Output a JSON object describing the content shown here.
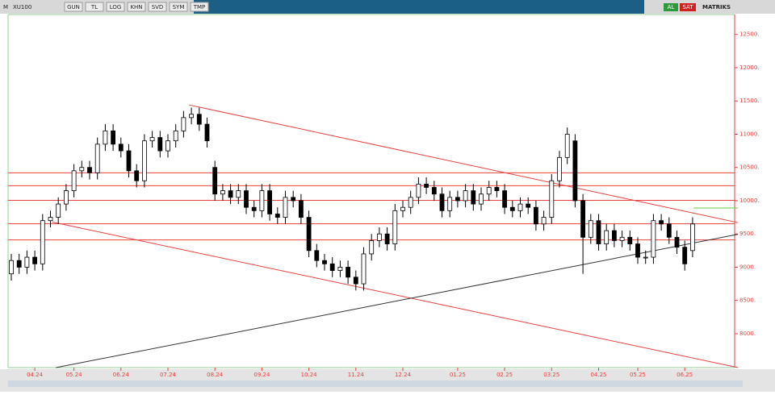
{
  "toolbar": {
    "symbol_prefix": "M",
    "symbol": "XU100",
    "buttons": [
      "GUN",
      "TL",
      "LOG",
      "KHN",
      "SVD",
      "SYM",
      "TMP"
    ],
    "buy": "AL",
    "sell": "SAT",
    "brand": "MATRIKS"
  },
  "chart_data": {
    "type": "candlestick",
    "categories": [
      null,
      null,
      null,
      "04.24",
      null,
      null,
      null,
      null,
      "05.24",
      null,
      null,
      null,
      null,
      null,
      "06.24",
      null,
      null,
      null,
      null,
      null,
      "07.24",
      null,
      null,
      null,
      null,
      null,
      "08.24",
      null,
      null,
      null,
      null,
      null,
      "09.24",
      null,
      null,
      null,
      null,
      null,
      "10.24",
      null,
      null,
      null,
      null,
      null,
      "11.24",
      null,
      null,
      null,
      null,
      null,
      "12.24",
      null,
      null,
      null,
      null,
      null,
      null,
      "01.25",
      null,
      null,
      null,
      null,
      null,
      "02.25",
      null,
      null,
      null,
      null,
      null,
      "03.25",
      null,
      null,
      null,
      null,
      null,
      "04.25",
      null,
      null,
      null,
      null,
      "05.25",
      null,
      null,
      null,
      null,
      null,
      "06.25",
      null
    ],
    "open": [
      8900,
      9100,
      9000,
      9150,
      9050,
      9700,
      9750,
      9950,
      10150,
      10450,
      10500,
      10420,
      10850,
      11050,
      10850,
      10750,
      10450,
      10300,
      10900,
      10950,
      10750,
      10900,
      11050,
      11250,
      11300,
      11150,
      10500,
      10100,
      10150,
      10050,
      10150,
      9900,
      9850,
      10150,
      9800,
      9750,
      10050,
      10000,
      9750,
      9250,
      9100,
      9050,
      8950,
      9000,
      8850,
      8750,
      9200,
      9400,
      9500,
      9350,
      9850,
      9900,
      10050,
      10250,
      10200,
      10100,
      9850,
      10050,
      10000,
      10150,
      9950,
      10100,
      10200,
      10150,
      9900,
      9850,
      9950,
      9900,
      9650,
      9750,
      10300,
      10650,
      10900,
      10000,
      9450,
      9700,
      9350,
      9550,
      9400,
      9450,
      9350,
      9150,
      9150,
      9700,
      9650,
      9450,
      9300,
      9250
    ],
    "high": [
      9200,
      9200,
      9250,
      9250,
      9800,
      9850,
      10050,
      10250,
      10550,
      10600,
      10600,
      10950,
      11150,
      11150,
      10950,
      10850,
      10550,
      11000,
      11050,
      11050,
      11000,
      11150,
      11350,
      11400,
      11400,
      11250,
      10600,
      10250,
      10250,
      10250,
      10250,
      10000,
      10250,
      10250,
      9900,
      10150,
      10150,
      10100,
      9850,
      9350,
      9200,
      9150,
      9100,
      9100,
      8950,
      9300,
      9500,
      9600,
      9600,
      9950,
      10000,
      10150,
      10350,
      10350,
      10300,
      10200,
      10150,
      10150,
      10250,
      10250,
      10200,
      10300,
      10300,
      10250,
      10000,
      10050,
      10050,
      10000,
      9850,
      10400,
      10750,
      11100,
      11000,
      10100,
      9800,
      9800,
      9650,
      9650,
      9550,
      9550,
      9450,
      9250,
      9800,
      9800,
      9750,
      9550,
      9400,
      9750
    ],
    "low": [
      8800,
      8900,
      8900,
      8950,
      8950,
      9600,
      9650,
      9850,
      10050,
      10350,
      10320,
      10320,
      10750,
      10750,
      10650,
      10350,
      10200,
      10200,
      10800,
      10650,
      10650,
      10800,
      10950,
      11150,
      11050,
      10800,
      10000,
      10000,
      9950,
      9950,
      9800,
      9750,
      9750,
      9700,
      9650,
      9650,
      9900,
      9650,
      9150,
      9000,
      8950,
      8850,
      8850,
      8750,
      8650,
      8650,
      9100,
      9300,
      9250,
      9250,
      9750,
      9800,
      9950,
      10100,
      10000,
      9750,
      9750,
      9900,
      9900,
      9850,
      9850,
      10000,
      10050,
      9800,
      9750,
      9750,
      9800,
      9550,
      9550,
      9650,
      10200,
      10550,
      9900,
      8900,
      9350,
      9250,
      9250,
      9300,
      9300,
      9250,
      9050,
      9050,
      9050,
      9550,
      9350,
      9200,
      8950,
      9150
    ],
    "close": [
      9100,
      9000,
      9150,
      9050,
      9700,
      9750,
      9950,
      10150,
      10450,
      10500,
      10420,
      10850,
      11050,
      10850,
      10750,
      10450,
      10300,
      10900,
      10950,
      10750,
      10900,
      11050,
      11250,
      11300,
      11150,
      10900,
      10100,
      10150,
      10050,
      10150,
      9900,
      9850,
      10150,
      9800,
      9750,
      10050,
      10000,
      9750,
      9250,
      9100,
      9050,
      8950,
      9000,
      8850,
      8750,
      9200,
      9400,
      9500,
      9350,
      9850,
      9900,
      10050,
      10250,
      10200,
      10100,
      9850,
      10050,
      10000,
      10150,
      9950,
      10100,
      10200,
      10150,
      9900,
      9850,
      9950,
      9900,
      9650,
      9750,
      10300,
      10650,
      11000,
      10000,
      9450,
      9700,
      9350,
      9550,
      9400,
      9450,
      9350,
      9150,
      9150,
      9700,
      9650,
      9450,
      9300,
      9050,
      9650
    ],
    "ylim": [
      7490,
      12800
    ],
    "yticks": [
      {
        "value": 8000,
        "label": "8000."
      },
      {
        "value": 8500,
        "label": "8500."
      },
      {
        "value": 9000,
        "label": "9000."
      },
      {
        "value": 9500,
        "label": "9500."
      },
      {
        "value": 10000,
        "label": "10000."
      },
      {
        "value": 10500,
        "label": "10500."
      },
      {
        "value": 11000,
        "label": "11000."
      },
      {
        "value": 11500,
        "label": "11500."
      },
      {
        "value": 12000,
        "label": "12000."
      },
      {
        "value": 12500,
        "label": "12500."
      }
    ],
    "hlines": [
      {
        "value": 10420,
        "color": "#e84040"
      },
      {
        "value": 10225,
        "color": "#e84040"
      },
      {
        "value": 10006,
        "color": "#e84040"
      },
      {
        "value": 9653,
        "color": "#e84040"
      },
      {
        "value": 9410,
        "color": "#e84040"
      }
    ],
    "lines": [
      {
        "color": "#e84040",
        "x": [
          22.7,
          92.8
        ],
        "y": [
          11440,
          9670
        ]
      },
      {
        "color": "#e84040",
        "x": [
          5.2,
          92.8
        ],
        "y": [
          9680,
          7490
        ]
      },
      {
        "color": "#333333",
        "x": [
          5.7,
          92.8
        ],
        "y": [
          7490,
          9495
        ]
      },
      {
        "color": "#66cc44",
        "x": [
          87.1,
          92.8
        ],
        "y": [
          9890,
          9890
        ]
      }
    ]
  }
}
